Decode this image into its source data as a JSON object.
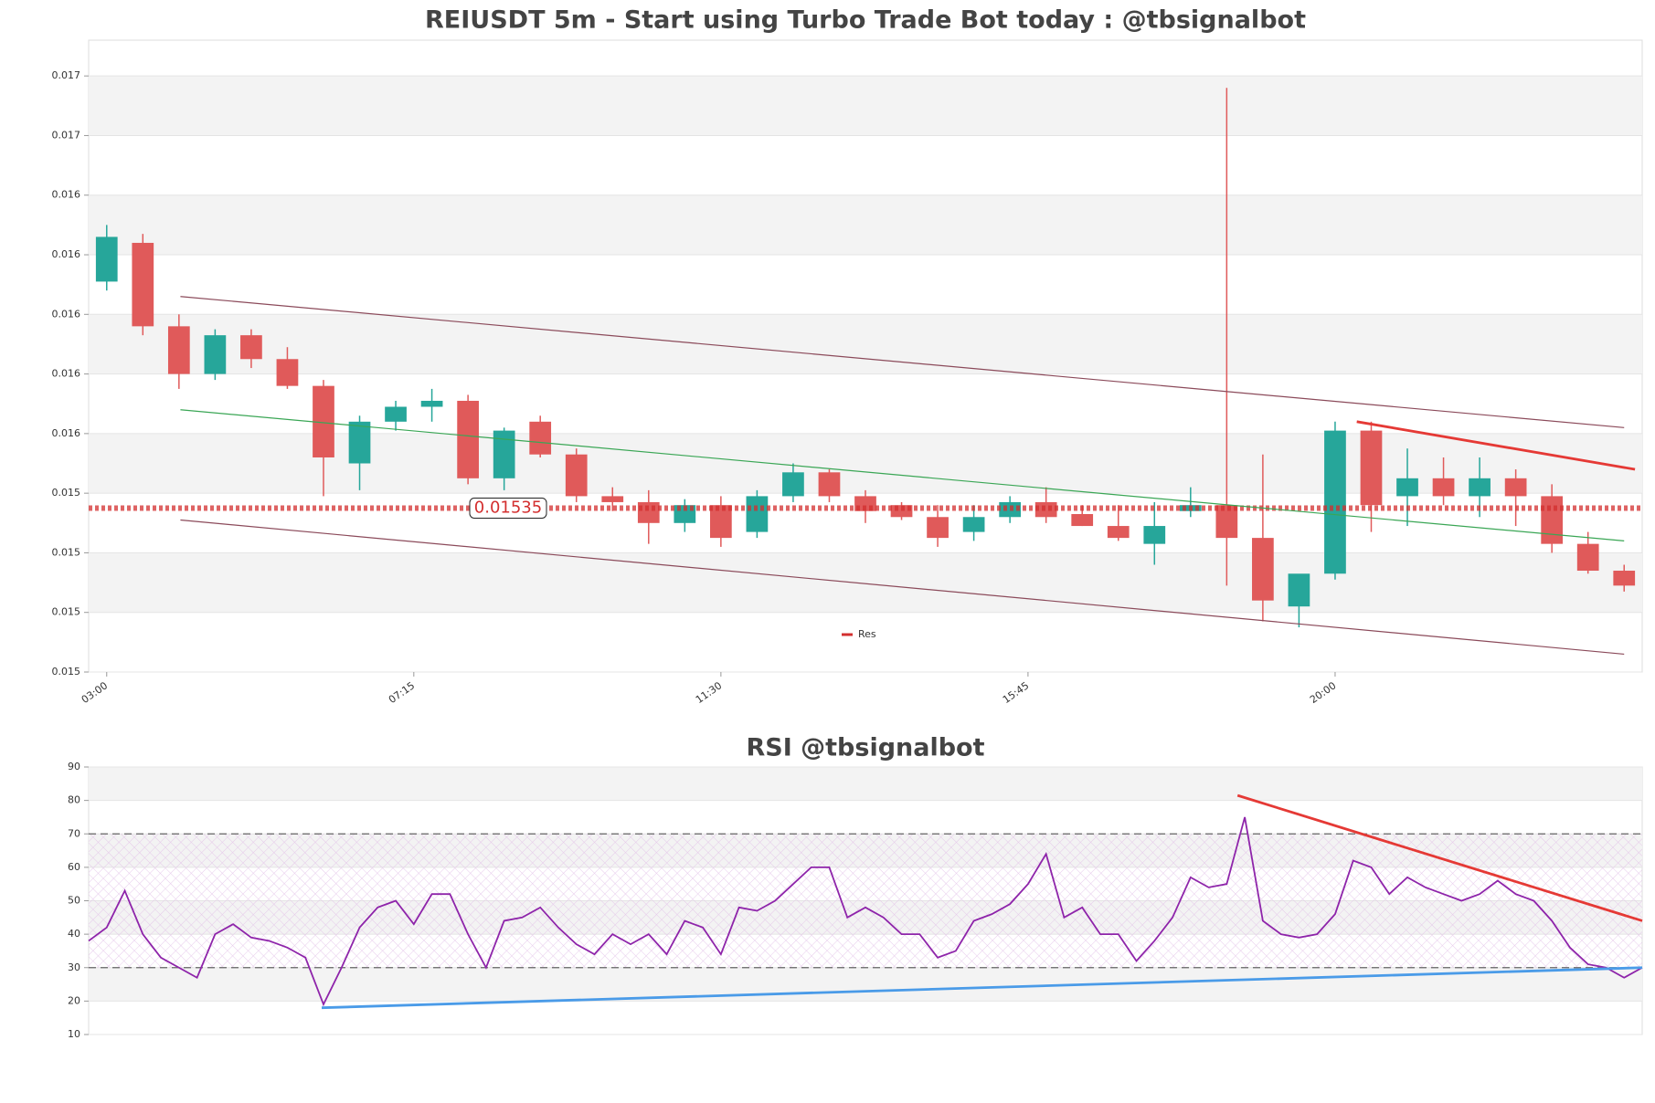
{
  "chart_data": [
    {
      "type": "candlestick",
      "title": "REIUSDT 5m - Start using Turbo Trade Bot today : @tbsignalbot",
      "x": [
        0,
        1,
        2,
        3,
        4,
        5,
        6,
        7,
        8,
        9,
        10,
        11,
        12,
        13,
        14,
        15,
        16,
        17,
        18,
        19,
        20,
        21,
        22,
        23,
        24,
        25,
        26,
        27,
        28,
        29,
        30,
        31,
        32,
        33,
        34,
        35,
        36,
        37,
        38,
        39,
        40,
        41,
        42
      ],
      "open": [
        0.01611,
        0.01624,
        0.01596,
        0.0158,
        0.01593,
        0.01585,
        0.01576,
        0.0155,
        0.01564,
        0.01569,
        0.01571,
        0.01545,
        0.01564,
        0.01553,
        0.01539,
        0.01537,
        0.0153,
        0.01536,
        0.01527,
        0.01539,
        0.01547,
        0.01539,
        0.01536,
        0.01532,
        0.01527,
        0.01532,
        0.01537,
        0.01533,
        0.01529,
        0.01523,
        0.01534,
        0.01536,
        0.01525,
        0.01502,
        0.01513,
        0.01561,
        0.01539,
        0.01545,
        0.01539,
        0.01545,
        0.01539,
        0.01523,
        0.01514
      ],
      "high": [
        0.0163,
        0.01627,
        0.016,
        0.01595,
        0.01595,
        0.01589,
        0.01578,
        0.01566,
        0.01571,
        0.01575,
        0.01573,
        0.01562,
        0.01566,
        0.01555,
        0.01542,
        0.01541,
        0.01538,
        0.01539,
        0.01541,
        0.0155,
        0.01548,
        0.01541,
        0.01537,
        0.01536,
        0.01536,
        0.01539,
        0.01542,
        0.01536,
        0.01536,
        0.01537,
        0.01542,
        0.01676,
        0.01553,
        0.01511,
        0.01564,
        0.01564,
        0.01555,
        0.01552,
        0.01552,
        0.01548,
        0.01543,
        0.01527,
        0.01516
      ],
      "low": [
        0.01608,
        0.01593,
        0.01575,
        0.01578,
        0.01582,
        0.01575,
        0.01539,
        0.01541,
        0.01561,
        0.01564,
        0.01543,
        0.01541,
        0.01552,
        0.01537,
        0.01534,
        0.01523,
        0.01527,
        0.01522,
        0.01525,
        0.01537,
        0.01537,
        0.0153,
        0.01531,
        0.01522,
        0.01524,
        0.0153,
        0.0153,
        0.01529,
        0.01524,
        0.01516,
        0.01532,
        0.01509,
        0.01497,
        0.01495,
        0.01511,
        0.01527,
        0.01529,
        0.01536,
        0.01532,
        0.01529,
        0.0152,
        0.01513,
        0.01507
      ],
      "close": [
        0.01626,
        0.01596,
        0.0158,
        0.01593,
        0.01585,
        0.01576,
        0.01552,
        0.01564,
        0.01569,
        0.01571,
        0.01545,
        0.01561,
        0.01553,
        0.01539,
        0.01537,
        0.0153,
        0.01536,
        0.01525,
        0.01539,
        0.01547,
        0.01539,
        0.01534,
        0.01532,
        0.01525,
        0.01532,
        0.01537,
        0.01532,
        0.01529,
        0.01525,
        0.01529,
        0.01536,
        0.01525,
        0.01504,
        0.01513,
        0.01561,
        0.01536,
        0.01545,
        0.01539,
        0.01545,
        0.01539,
        0.01523,
        0.01514,
        0.01509
      ],
      "up_color": "#26a69a",
      "down_color": "#e05a5a",
      "xlim": [
        -0.5,
        42.5
      ],
      "xticks": [
        {
          "value": 0,
          "label": "03:00"
        },
        {
          "value": 8.5,
          "label": "07:15"
        },
        {
          "value": 17,
          "label": "11:30"
        },
        {
          "value": 25.5,
          "label": "15:45"
        },
        {
          "value": 34,
          "label": "20:00"
        }
      ],
      "ylim": [
        0.0148,
        0.01692
      ],
      "yticks": [
        {
          "value": 0.0148,
          "label": "0.015"
        },
        {
          "value": 0.015,
          "label": "0.015"
        },
        {
          "value": 0.0152,
          "label": "0.015"
        },
        {
          "value": 0.0154,
          "label": "0.015"
        },
        {
          "value": 0.0156,
          "label": "0.016"
        },
        {
          "value": 0.0158,
          "label": "0.016"
        },
        {
          "value": 0.016,
          "label": "0.016"
        },
        {
          "value": 0.0162,
          "label": "0.016"
        },
        {
          "value": 0.0164,
          "label": "0.016"
        },
        {
          "value": 0.0166,
          "label": "0.017"
        },
        {
          "value": 0.0168,
          "label": "0.017"
        }
      ],
      "lines": [
        {
          "color": "#8b4a5a",
          "x": [
            2.04,
            42.0
          ],
          "y": [
            0.01606,
            0.01562
          ]
        },
        {
          "color": "#3aa655",
          "x": [
            2.04,
            42.0
          ],
          "y": [
            0.01568,
            0.01524
          ]
        },
        {
          "color": "#8b4a5a",
          "x": [
            2.04,
            42.0
          ],
          "y": [
            0.01531,
            0.01486
          ]
        },
        {
          "color": "#e53935",
          "x": [
            34.6,
            42.3
          ],
          "y": [
            0.01564,
            0.01548
          ]
        }
      ],
      "price_line": {
        "name": "Res",
        "value": 0.01535,
        "label": "0.01535",
        "color": "#d32f2f"
      },
      "legend": "lower center"
    },
    {
      "type": "line",
      "title": "RSI @tbsignalbot",
      "series": [
        {
          "color": "#8e24aa",
          "values": [
            38,
            42,
            53,
            40,
            33,
            30,
            27,
            40,
            43,
            39,
            38,
            36,
            33,
            19,
            30,
            42,
            48,
            50,
            43,
            52,
            52,
            40,
            30,
            44,
            45,
            48,
            42,
            37,
            34,
            40,
            37,
            40,
            34,
            44,
            42,
            34,
            48,
            47,
            50,
            55,
            60,
            60,
            45,
            48,
            45,
            40,
            40,
            33,
            35,
            44,
            46,
            49,
            55,
            64,
            45,
            48,
            40,
            40,
            32,
            38,
            45,
            57,
            54,
            55,
            75,
            44,
            40,
            39,
            40,
            46,
            62,
            60,
            52,
            57,
            54,
            52,
            50,
            52,
            56,
            52,
            50,
            44,
            36,
            31,
            30,
            27,
            30
          ]
        }
      ],
      "xlim": [
        0,
        86
      ],
      "ylim": [
        10,
        90
      ],
      "yticks": [
        10,
        20,
        30,
        40,
        50,
        60,
        70,
        80,
        90
      ],
      "hlines": [
        30,
        70
      ],
      "band": [
        30,
        70
      ],
      "lines": [
        {
          "color": "#e53935",
          "x": [
            63.6,
            86
          ],
          "y": [
            81.5,
            44
          ]
        },
        {
          "color": "#4a9be8",
          "x": [
            12.9,
            86
          ],
          "y": [
            18,
            30
          ]
        }
      ]
    }
  ]
}
